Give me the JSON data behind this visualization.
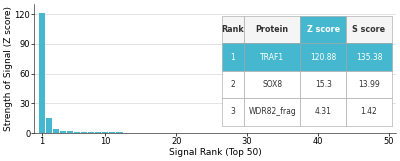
{
  "bar_color": "#45b8d0",
  "x_values": [
    1,
    2,
    3,
    4,
    5,
    6,
    7,
    8,
    9,
    10,
    11,
    12,
    13,
    14,
    15,
    16,
    17,
    18,
    19,
    20,
    21,
    22,
    23,
    24,
    25,
    26,
    27,
    28,
    29,
    30,
    31,
    32,
    33,
    34,
    35,
    36,
    37,
    38,
    39,
    40,
    41,
    42,
    43,
    44,
    45,
    46,
    47,
    48,
    49,
    50
  ],
  "y_values": [
    120.88,
    15.3,
    4.31,
    2.5,
    1.8,
    1.5,
    1.3,
    1.1,
    1.0,
    0.9,
    0.85,
    0.8,
    0.75,
    0.7,
    0.65,
    0.6,
    0.58,
    0.55,
    0.52,
    0.5,
    0.48,
    0.46,
    0.44,
    0.42,
    0.4,
    0.38,
    0.37,
    0.36,
    0.35,
    0.34,
    0.33,
    0.32,
    0.31,
    0.3,
    0.29,
    0.28,
    0.27,
    0.26,
    0.25,
    0.24,
    0.23,
    0.22,
    0.21,
    0.2,
    0.19,
    0.18,
    0.17,
    0.16,
    0.15,
    0.14
  ],
  "xlabel": "Signal Rank (Top 50)",
  "ylabel": "Strength of Signal (Z score)",
  "xlim": [
    0,
    51
  ],
  "ylim": [
    0,
    130
  ],
  "yticks": [
    0,
    30,
    60,
    90,
    120
  ],
  "xticks": [
    1,
    10,
    20,
    30,
    40,
    50
  ],
  "grid_color": "#d0d0d0",
  "background_color": "#ffffff",
  "table_header_bg": "#45b8d0",
  "table_row1_bg": "#45b8d0",
  "table_headers": [
    "Rank",
    "Protein",
    "Z score",
    "S score"
  ],
  "table_data": [
    [
      "1",
      "TRAF1",
      "120.88",
      "135.38"
    ],
    [
      "2",
      "SOX8",
      "15.3",
      "13.99"
    ],
    [
      "3",
      "WDR82_frag",
      "4.31",
      "1.42"
    ]
  ],
  "label_fontsize": 6.5,
  "tick_fontsize": 6,
  "table_fontsize": 5.5,
  "table_header_fontsize": 5.8
}
